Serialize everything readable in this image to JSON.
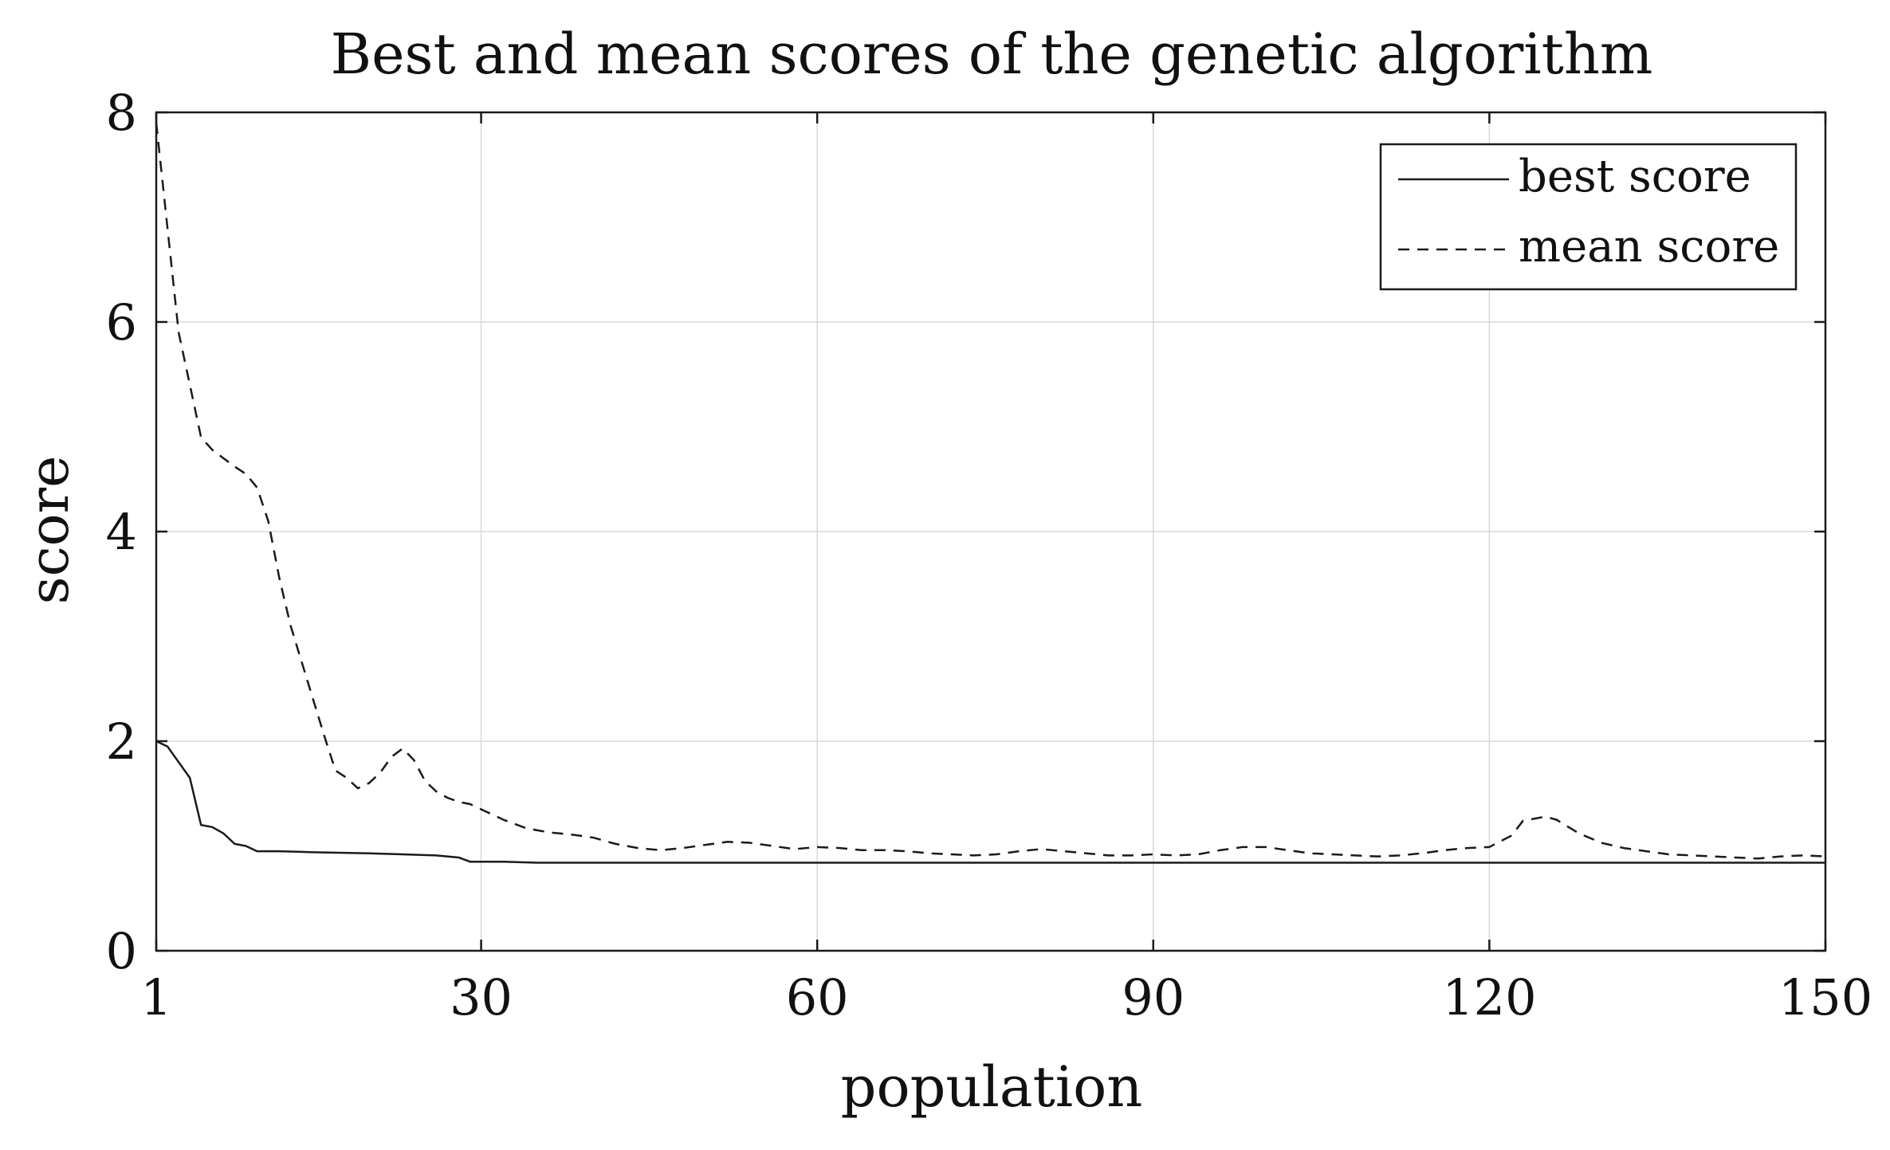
{
  "chart_data": {
    "type": "line",
    "title": "Best and mean scores of the genetic algorithm",
    "xlabel": "population",
    "ylabel": "score",
    "xlim": [
      1,
      150
    ],
    "ylim": [
      0,
      8
    ],
    "xticks": [
      1,
      30,
      60,
      90,
      120,
      150
    ],
    "yticks": [
      0,
      2,
      4,
      6,
      8
    ],
    "grid": true,
    "legend_position": "top-right",
    "series": [
      {
        "name": "best score",
        "style": "solid",
        "color": "#1a1a1a",
        "points": [
          [
            1,
            2.0
          ],
          [
            2,
            1.95
          ],
          [
            3,
            1.8
          ],
          [
            4,
            1.65
          ],
          [
            5,
            1.2
          ],
          [
            6,
            1.18
          ],
          [
            7,
            1.12
          ],
          [
            8,
            1.02
          ],
          [
            9,
            1.0
          ],
          [
            10,
            0.95
          ],
          [
            12,
            0.95
          ],
          [
            15,
            0.94
          ],
          [
            20,
            0.93
          ],
          [
            23,
            0.92
          ],
          [
            26,
            0.91
          ],
          [
            28,
            0.89
          ],
          [
            29,
            0.85
          ],
          [
            32,
            0.85
          ],
          [
            35,
            0.84
          ],
          [
            150,
            0.84
          ]
        ]
      },
      {
        "name": "mean score",
        "style": "dashed",
        "color": "#1a1a1a",
        "points": [
          [
            1,
            7.9
          ],
          [
            2,
            6.9
          ],
          [
            3,
            5.9
          ],
          [
            4,
            5.4
          ],
          [
            5,
            4.9
          ],
          [
            6,
            4.78
          ],
          [
            7,
            4.7
          ],
          [
            8,
            4.62
          ],
          [
            9,
            4.55
          ],
          [
            10,
            4.42
          ],
          [
            11,
            4.1
          ],
          [
            12,
            3.55
          ],
          [
            13,
            3.1
          ],
          [
            14,
            2.75
          ],
          [
            15,
            2.4
          ],
          [
            16,
            2.05
          ],
          [
            17,
            1.72
          ],
          [
            18,
            1.65
          ],
          [
            19,
            1.55
          ],
          [
            20,
            1.6
          ],
          [
            21,
            1.7
          ],
          [
            22,
            1.85
          ],
          [
            23,
            1.93
          ],
          [
            24,
            1.82
          ],
          [
            25,
            1.62
          ],
          [
            26,
            1.52
          ],
          [
            27,
            1.46
          ],
          [
            28,
            1.42
          ],
          [
            29,
            1.4
          ],
          [
            30,
            1.35
          ],
          [
            32,
            1.25
          ],
          [
            34,
            1.17
          ],
          [
            36,
            1.13
          ],
          [
            38,
            1.11
          ],
          [
            40,
            1.08
          ],
          [
            42,
            1.02
          ],
          [
            44,
            0.98
          ],
          [
            46,
            0.96
          ],
          [
            48,
            0.98
          ],
          [
            50,
            1.01
          ],
          [
            52,
            1.04
          ],
          [
            54,
            1.03
          ],
          [
            56,
            1.0
          ],
          [
            58,
            0.97
          ],
          [
            60,
            0.99
          ],
          [
            62,
            0.98
          ],
          [
            64,
            0.96
          ],
          [
            66,
            0.96
          ],
          [
            68,
            0.95
          ],
          [
            70,
            0.93
          ],
          [
            72,
            0.92
          ],
          [
            74,
            0.91
          ],
          [
            76,
            0.92
          ],
          [
            78,
            0.95
          ],
          [
            80,
            0.97
          ],
          [
            82,
            0.95
          ],
          [
            84,
            0.93
          ],
          [
            86,
            0.91
          ],
          [
            88,
            0.91
          ],
          [
            90,
            0.92
          ],
          [
            92,
            0.91
          ],
          [
            94,
            0.92
          ],
          [
            96,
            0.96
          ],
          [
            98,
            0.99
          ],
          [
            100,
            0.99
          ],
          [
            102,
            0.96
          ],
          [
            104,
            0.93
          ],
          [
            106,
            0.92
          ],
          [
            108,
            0.91
          ],
          [
            110,
            0.9
          ],
          [
            112,
            0.91
          ],
          [
            114,
            0.93
          ],
          [
            116,
            0.96
          ],
          [
            118,
            0.98
          ],
          [
            120,
            0.99
          ],
          [
            122,
            1.1
          ],
          [
            123,
            1.24
          ],
          [
            125,
            1.28
          ],
          [
            126,
            1.25
          ],
          [
            128,
            1.12
          ],
          [
            130,
            1.03
          ],
          [
            132,
            0.98
          ],
          [
            134,
            0.95
          ],
          [
            136,
            0.92
          ],
          [
            138,
            0.91
          ],
          [
            140,
            0.9
          ],
          [
            142,
            0.89
          ],
          [
            144,
            0.88
          ],
          [
            146,
            0.9
          ],
          [
            148,
            0.91
          ],
          [
            150,
            0.9
          ]
        ]
      }
    ]
  },
  "colors": {
    "axis": "#1a1a1a",
    "grid": "#d9d9d9",
    "background": "#ffffff"
  }
}
